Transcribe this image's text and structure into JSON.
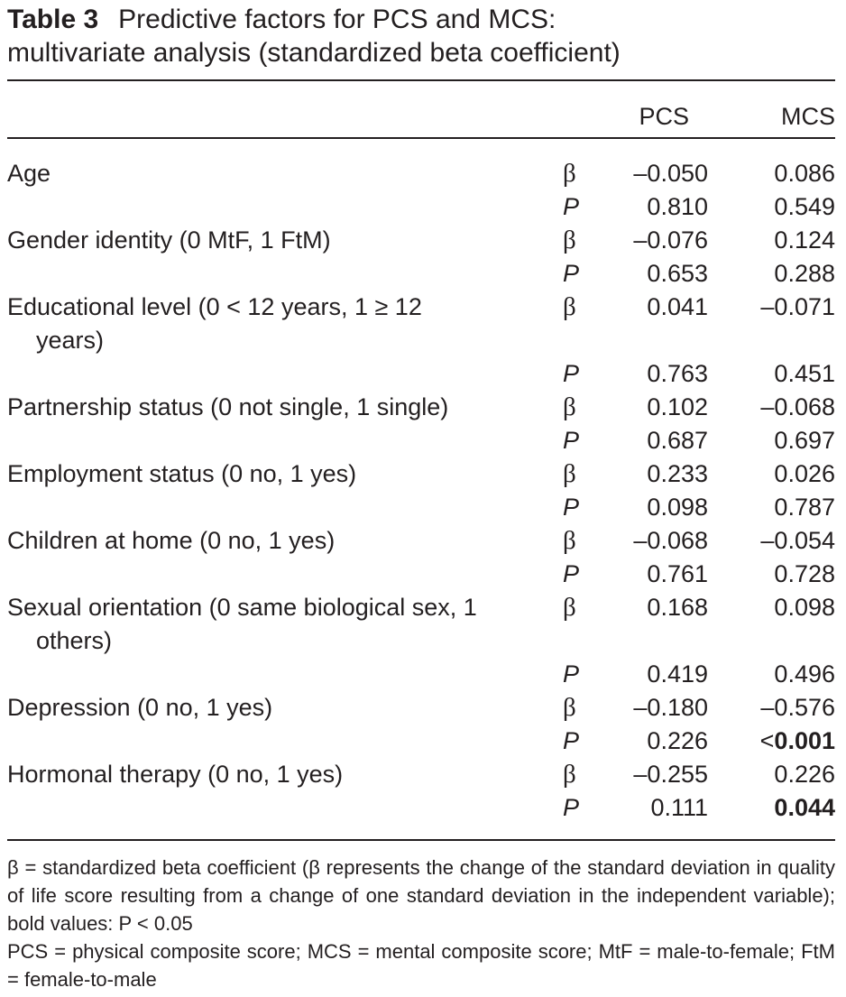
{
  "title": {
    "label": "Table 3",
    "line1": "Predictive factors for PCS and MCS:",
    "line2": "multivariate analysis (standardized beta coefficient)"
  },
  "columns": {
    "pcs": "PCS",
    "mcs": "MCS"
  },
  "symbols": {
    "beta": "β",
    "p": "P"
  },
  "rows": [
    {
      "label": "Age",
      "beta": {
        "pcs": "–0.050",
        "mcs": "0.086"
      },
      "p": {
        "pcs": "0.810",
        "mcs": "0.549"
      }
    },
    {
      "label": "Gender identity (0 MtF, 1 FtM)",
      "beta": {
        "pcs": "–0.076",
        "mcs": "0.124"
      },
      "p": {
        "pcs": "0.653",
        "mcs": "0.288"
      }
    },
    {
      "label": "Educational level (0 < 12 years, 1 ≥ 12 years)",
      "beta": {
        "pcs": "0.041",
        "mcs": "–0.071"
      },
      "p": {
        "pcs": "0.763",
        "mcs": "0.451"
      }
    },
    {
      "label": "Partnership status (0 not single, 1 single)",
      "beta": {
        "pcs": "0.102",
        "mcs": "–0.068"
      },
      "p": {
        "pcs": "0.687",
        "mcs": "0.697"
      }
    },
    {
      "label": "Employment status (0 no, 1 yes)",
      "beta": {
        "pcs": "0.233",
        "mcs": "0.026"
      },
      "p": {
        "pcs": "0.098",
        "mcs": "0.787"
      }
    },
    {
      "label": "Children at home (0 no, 1 yes)",
      "beta": {
        "pcs": "–0.068",
        "mcs": "–0.054"
      },
      "p": {
        "pcs": "0.761",
        "mcs": "0.728"
      }
    },
    {
      "label": "Sexual orientation (0 same biological sex, 1 others)",
      "beta": {
        "pcs": "0.168",
        "mcs": "0.098"
      },
      "p": {
        "pcs": "0.419",
        "mcs": "0.496"
      }
    },
    {
      "label": "Depression (0 no, 1 yes)",
      "beta": {
        "pcs": "–0.180",
        "mcs": "–0.576"
      },
      "p": {
        "pcs": "0.226",
        "mcs_prefix": "<",
        "mcs": "0.001"
      }
    },
    {
      "label": "Hormonal therapy (0 no, 1 yes)",
      "beta": {
        "pcs": "–0.255",
        "mcs": "0.226"
      },
      "p": {
        "pcs": "0.111",
        "mcs": "0.044"
      }
    }
  ],
  "footnotes": {
    "line1": "β = standardized beta coefficient (β represents the change of the standard deviation in quality of life score resulting from a change of one standard deviation in the independent variable); bold values: P < 0.05",
    "line2": "PCS = physical composite score; MCS = mental composite score; MtF = male-to-female; FtM = female-to-male"
  }
}
